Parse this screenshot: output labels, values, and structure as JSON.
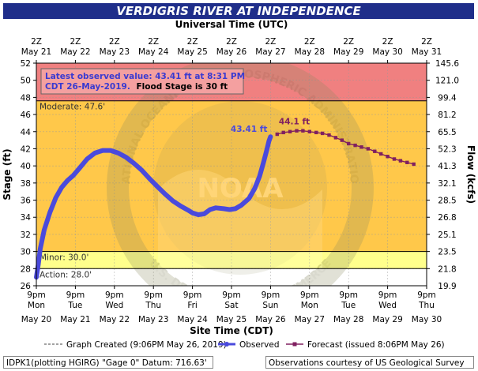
{
  "chart_data": {
    "type": "line",
    "title": "VERDIGRIS RIVER AT INDEPENDENCE",
    "top_axis_label": "Universal Time (UTC)",
    "top_ticks": [
      {
        "line1": "2Z",
        "line2": "May 21"
      },
      {
        "line1": "2Z",
        "line2": "May 22"
      },
      {
        "line1": "2Z",
        "line2": "May 23"
      },
      {
        "line1": "2Z",
        "line2": "May 24"
      },
      {
        "line1": "2Z",
        "line2": "May 25"
      },
      {
        "line1": "2Z",
        "line2": "May 26"
      },
      {
        "line1": "2Z",
        "line2": "May 27"
      },
      {
        "line1": "2Z",
        "line2": "May 28"
      },
      {
        "line1": "2Z",
        "line2": "May 29"
      },
      {
        "line1": "2Z",
        "line2": "May 30"
      },
      {
        "line1": "2Z",
        "line2": "May 31"
      }
    ],
    "xlabel": "Site Time (CDT)",
    "x_ticks": [
      {
        "line1": "9pm",
        "line2": "Mon",
        "line3": "May 20"
      },
      {
        "line1": "9pm",
        "line2": "Tue",
        "line3": "May 21"
      },
      {
        "line1": "9pm",
        "line2": "Wed",
        "line3": "May 22"
      },
      {
        "line1": "9pm",
        "line2": "Thu",
        "line3": "May 23"
      },
      {
        "line1": "9pm",
        "line2": "Fri",
        "line3": "May 24"
      },
      {
        "line1": "9pm",
        "line2": "Sat",
        "line3": "May 25"
      },
      {
        "line1": "9pm",
        "line2": "Sun",
        "line3": "May 26"
      },
      {
        "line1": "9pm",
        "line2": "Mon",
        "line3": "May 27"
      },
      {
        "line1": "9pm",
        "line2": "Tue",
        "line3": "May 28"
      },
      {
        "line1": "9pm",
        "line2": "Wed",
        "line3": "May 29"
      },
      {
        "line1": "9pm",
        "line2": "Thu",
        "line3": "May 30"
      }
    ],
    "xlim_days": [
      0,
      10
    ],
    "ylabel": "Stage (ft)",
    "ylim": [
      26,
      52
    ],
    "y_ticks": [
      26,
      28,
      30,
      32,
      34,
      36,
      38,
      40,
      42,
      44,
      46,
      48,
      50,
      52
    ],
    "y2label": "Flow (kcfs)",
    "y2_ticks": [
      {
        "stage": 28,
        "label": "21.8"
      },
      {
        "stage": 30,
        "label": "23.5"
      },
      {
        "stage": 32,
        "label": "25.1"
      },
      {
        "stage": 34,
        "label": "26.8"
      },
      {
        "stage": 36,
        "label": "28.5"
      },
      {
        "stage": 38,
        "label": "32.1"
      },
      {
        "stage": 40,
        "label": "41.3"
      },
      {
        "stage": 42,
        "label": "52.3"
      },
      {
        "stage": 44,
        "label": "65.5"
      },
      {
        "stage": 46,
        "label": "81.2"
      },
      {
        "stage": 48,
        "label": "99.4"
      },
      {
        "stage": 50,
        "label": "121.0"
      },
      {
        "stage": 52,
        "label": "145.6"
      }
    ],
    "y2_bottom_label": "19.9",
    "zones": [
      {
        "name": "major",
        "from": 47.6,
        "to": 52,
        "color": "#f08080"
      },
      {
        "name": "moderate",
        "from": 30,
        "to": 47.6,
        "color": "#ffc84a"
      },
      {
        "name": "minor",
        "from": 28,
        "to": 30,
        "color": "#ffff8c"
      },
      {
        "name": "normal",
        "from": 26,
        "to": 28,
        "color": "#ffffff"
      }
    ],
    "thresholds": [
      {
        "label": "Moderate: 47.6'",
        "value": 47.6
      },
      {
        "label": "Minor: 30.0'",
        "value": 30.0
      },
      {
        "label": "Action: 28.0'",
        "value": 28.0
      }
    ],
    "observed": {
      "name": "Observed",
      "color": "#4a4adc",
      "points": [
        [
          0.0,
          27.0
        ],
        [
          0.05,
          28.5
        ],
        [
          0.1,
          30.3
        ],
        [
          0.2,
          32.5
        ],
        [
          0.35,
          34.6
        ],
        [
          0.5,
          36.3
        ],
        [
          0.65,
          37.5
        ],
        [
          0.8,
          38.3
        ],
        [
          0.95,
          38.9
        ],
        [
          1.1,
          39.7
        ],
        [
          1.3,
          40.8
        ],
        [
          1.5,
          41.5
        ],
        [
          1.7,
          41.8
        ],
        [
          1.9,
          41.8
        ],
        [
          2.1,
          41.5
        ],
        [
          2.3,
          41.0
        ],
        [
          2.5,
          40.3
        ],
        [
          2.7,
          39.5
        ],
        [
          2.9,
          38.5
        ],
        [
          3.1,
          37.6
        ],
        [
          3.3,
          36.7
        ],
        [
          3.5,
          35.9
        ],
        [
          3.7,
          35.3
        ],
        [
          3.9,
          34.8
        ],
        [
          4.0,
          34.5
        ],
        [
          4.15,
          34.3
        ],
        [
          4.3,
          34.4
        ],
        [
          4.45,
          34.9
        ],
        [
          4.6,
          35.1
        ],
        [
          4.8,
          35.0
        ],
        [
          4.95,
          34.9
        ],
        [
          5.1,
          35.0
        ],
        [
          5.25,
          35.4
        ],
        [
          5.45,
          36.2
        ],
        [
          5.6,
          37.4
        ],
        [
          5.72,
          38.8
        ],
        [
          5.82,
          40.4
        ],
        [
          5.9,
          41.8
        ],
        [
          5.96,
          42.9
        ],
        [
          6.0,
          43.41
        ]
      ]
    },
    "forecast": {
      "name": "Forecast (issued 8:06PM May 26)",
      "color": "#802060",
      "points": [
        [
          6.17,
          43.7
        ],
        [
          6.33,
          43.9
        ],
        [
          6.5,
          44.0
        ],
        [
          6.67,
          44.1
        ],
        [
          6.83,
          44.1
        ],
        [
          7.0,
          44.0
        ],
        [
          7.17,
          43.9
        ],
        [
          7.33,
          43.8
        ],
        [
          7.5,
          43.6
        ],
        [
          7.67,
          43.3
        ],
        [
          7.83,
          43.0
        ],
        [
          8.0,
          42.6
        ],
        [
          8.17,
          42.4
        ],
        [
          8.33,
          42.2
        ],
        [
          8.5,
          42.0
        ],
        [
          8.67,
          41.7
        ],
        [
          8.83,
          41.4
        ],
        [
          9.0,
          41.1
        ],
        [
          9.17,
          40.8
        ],
        [
          9.33,
          40.6
        ],
        [
          9.5,
          40.4
        ],
        [
          9.67,
          40.2
        ]
      ]
    },
    "annotations": {
      "observed_label": "43.41 ft",
      "forecast_peak_label": "44.1 ft",
      "forecast_peak_x": 6.67,
      "forecast_peak_y": 44.1
    },
    "info_box": {
      "line1": "Latest observed value: 43.41 ft at 8:31 PM",
      "line2a": "CDT 26-May-2019.",
      "line2b": "Flood Stage is 30 ft"
    },
    "legend": {
      "graph_created": "Graph Created (9:06PM May 26, 2019)",
      "observed": "Observed",
      "forecast": "Forecast (issued 8:06PM May 26)"
    },
    "watermark": {
      "center_text": "NOAA",
      "ring_text_top": "NATIONAL OCEANIC AND ATMOSPHERIC ADMINISTRATION",
      "ring_text_bottom": "U.S. DEPARTMENT OF COMMERCE"
    }
  },
  "footer": {
    "left": "IDPK1(plotting HGIRG) \"Gage 0\" Datum: 716.63'",
    "right": "Observations courtesy of US Geological Survey"
  }
}
